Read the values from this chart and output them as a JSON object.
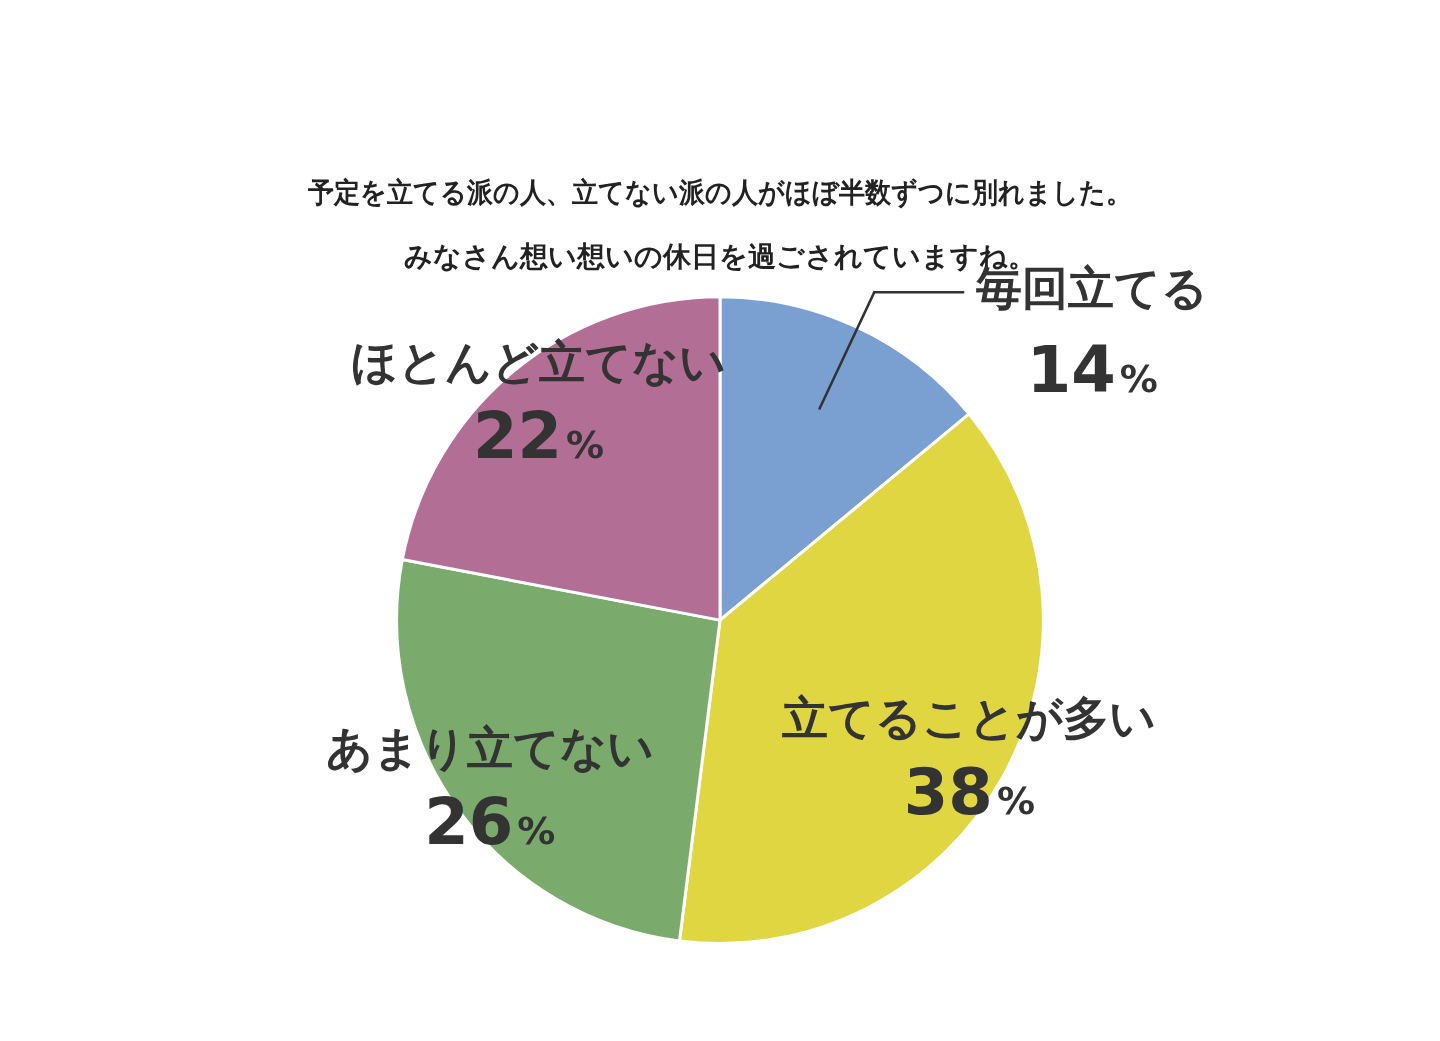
{
  "chart_data": {
    "type": "pie",
    "title": "予定を立てる派の人、立てない派の人がほぼ半数ずつに別れました。",
    "subtitle": "みなさん想い想いの休日を過ごされていますね。",
    "categories": [
      "毎回立てる",
      "立てることが多い",
      "あまり立てない",
      "ほとんど立てない"
    ],
    "values": [
      14,
      38,
      26,
      22
    ],
    "colors": [
      "#7aa0d2",
      "#dfd641",
      "#7aaa6c",
      "#b26e94"
    ],
    "value_labels": [
      "14%",
      "38%",
      "26%",
      "22%"
    ],
    "legend": false
  }
}
